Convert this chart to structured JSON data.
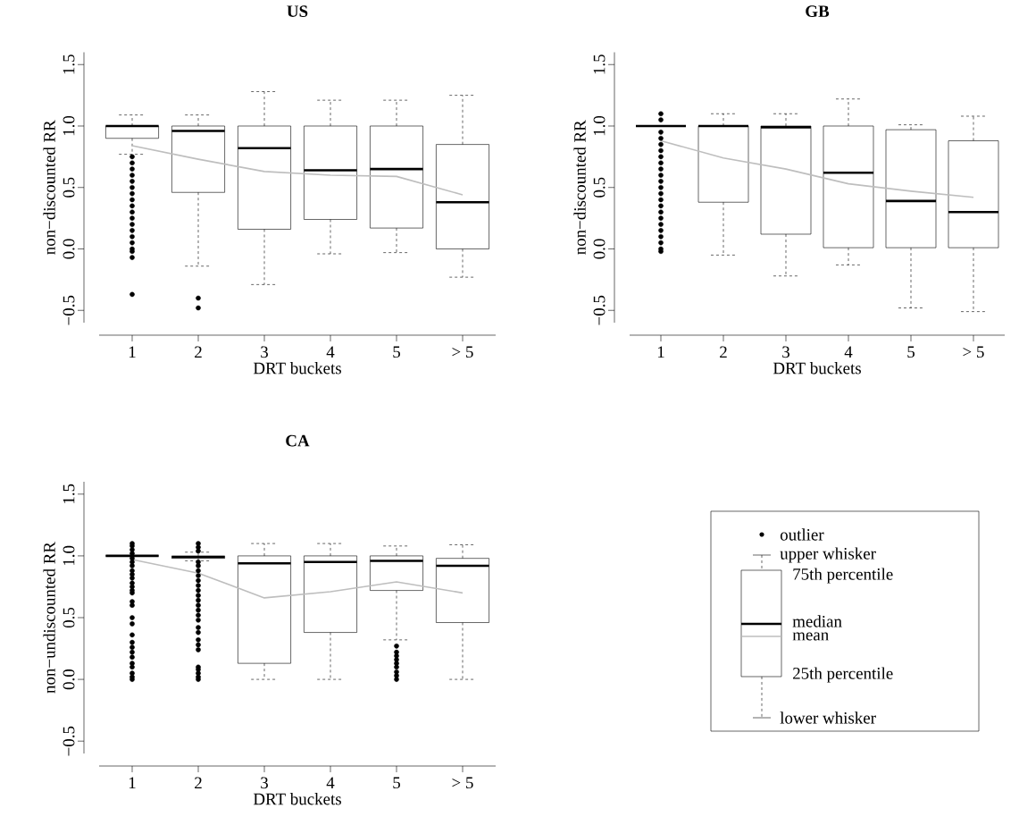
{
  "chart_data": [
    {
      "type": "box",
      "title": "US",
      "xlabel": "DRT buckets",
      "ylabel": "non−discounted RR",
      "categories": [
        "1",
        "2",
        "3",
        "4",
        "5",
        "> 5"
      ],
      "ylim": [
        -0.6,
        1.6
      ],
      "yticks": [
        {
          "value": -0.5,
          "label": "−0.5"
        },
        {
          "value": 0,
          "label": "0.0"
        },
        {
          "value": 0.5,
          "label": "0.5"
        },
        {
          "value": 1,
          "label": "1.0"
        },
        {
          "value": 1.5,
          "label": "1.5"
        }
      ],
      "series": [
        {
          "type": "box",
          "boxes": [
            {
              "low": 0.77,
              "q1": 0.9,
              "median": 1.0,
              "q3": 1.0,
              "high": 1.09,
              "outliers": [
                -0.37,
                -0.07,
                -0.02,
                0.0,
                0.05,
                0.1,
                0.15,
                0.2,
                0.25,
                0.3,
                0.35,
                0.4,
                0.45,
                0.5,
                0.55,
                0.6,
                0.65,
                0.7,
                0.75
              ]
            },
            {
              "low": -0.14,
              "q1": 0.46,
              "median": 0.96,
              "q3": 1.0,
              "high": 1.09,
              "outliers": [
                -0.48,
                -0.4
              ]
            },
            {
              "low": -0.29,
              "q1": 0.16,
              "median": 0.82,
              "q3": 1.0,
              "high": 1.28
            },
            {
              "low": -0.04,
              "q1": 0.24,
              "median": 0.64,
              "q3": 1.0,
              "high": 1.21
            },
            {
              "low": -0.03,
              "q1": 0.17,
              "median": 0.65,
              "q3": 1.0,
              "high": 1.21
            },
            {
              "low": -0.23,
              "q1": 0.0,
              "median": 0.38,
              "q3": 0.85,
              "high": 1.25
            }
          ]
        },
        {
          "type": "line",
          "color": "#bebebe",
          "values": [
            0.84,
            0.73,
            0.63,
            0.6,
            0.59,
            0.44
          ]
        }
      ]
    },
    {
      "type": "box",
      "title": "GB",
      "xlabel": "DRT buckets",
      "ylabel": "non−discounted RR",
      "categories": [
        "1",
        "2",
        "3",
        "4",
        "5",
        "> 5"
      ],
      "ylim": [
        -0.6,
        1.6
      ],
      "yticks": [
        {
          "value": -0.5,
          "label": "−0.5"
        },
        {
          "value": 0,
          "label": "0.0"
        },
        {
          "value": 0.5,
          "label": "0.5"
        },
        {
          "value": 1,
          "label": "1.0"
        },
        {
          "value": 1.5,
          "label": "1.5"
        }
      ],
      "series": [
        {
          "type": "box",
          "boxes": [
            {
              "low": 1.0,
              "q1": 1.0,
              "median": 1.0,
              "q3": 1.0,
              "high": 1.0,
              "outliers": [
                -0.02,
                0.0,
                0.05,
                0.1,
                0.15,
                0.2,
                0.25,
                0.3,
                0.35,
                0.4,
                0.45,
                0.5,
                0.55,
                0.6,
                0.65,
                0.7,
                0.75,
                0.8,
                0.85,
                0.9,
                0.95,
                1.05,
                1.1
              ]
            },
            {
              "low": -0.05,
              "q1": 0.38,
              "median": 1.0,
              "q3": 1.0,
              "high": 1.1
            },
            {
              "low": -0.22,
              "q1": 0.12,
              "median": 0.99,
              "q3": 1.0,
              "high": 1.1
            },
            {
              "low": -0.13,
              "q1": 0.01,
              "median": 0.62,
              "q3": 1.0,
              "high": 1.22
            },
            {
              "low": -0.48,
              "q1": 0.01,
              "median": 0.39,
              "q3": 0.97,
              "high": 1.01
            },
            {
              "low": -0.51,
              "q1": 0.01,
              "median": 0.3,
              "q3": 0.88,
              "high": 1.08
            }
          ]
        },
        {
          "type": "line",
          "color": "#bebebe",
          "values": [
            0.88,
            0.74,
            0.65,
            0.53,
            0.47,
            0.42
          ]
        }
      ]
    },
    {
      "type": "box",
      "title": "CA",
      "xlabel": "DRT buckets",
      "ylabel": "non−undiscounted RR",
      "categories": [
        "1",
        "2",
        "3",
        "4",
        "5",
        "> 5"
      ],
      "ylim": [
        -0.6,
        1.6
      ],
      "yticks": [
        {
          "value": -0.5,
          "label": "−0.5"
        },
        {
          "value": 0,
          "label": "0.0"
        },
        {
          "value": 0.5,
          "label": "0.5"
        },
        {
          "value": 1,
          "label": "1.0"
        },
        {
          "value": 1.5,
          "label": "1.5"
        }
      ],
      "series": [
        {
          "type": "box",
          "boxes": [
            {
              "low": 1.0,
              "q1": 1.0,
              "median": 1.0,
              "q3": 1.0,
              "high": 1.0,
              "outliers": [
                0.0,
                0.02,
                0.05,
                0.1,
                0.13,
                0.18,
                0.22,
                0.26,
                0.3,
                0.36,
                0.45,
                0.5,
                0.6,
                0.63,
                0.7,
                0.72,
                0.75,
                0.78,
                0.82,
                0.85,
                0.88,
                0.92,
                0.95,
                0.98,
                1.02,
                1.05,
                1.08,
                1.1
              ]
            },
            {
              "low": 0.96,
              "q1": 0.98,
              "median": 0.99,
              "q3": 1.0,
              "high": 1.03,
              "outliers": [
                0.0,
                0.02,
                0.05,
                0.08,
                0.1,
                0.24,
                0.28,
                0.32,
                0.38,
                0.42,
                0.48,
                0.52,
                0.56,
                0.6,
                0.64,
                0.68,
                0.72,
                0.76,
                0.8,
                0.84,
                0.88,
                0.92,
                0.95,
                1.04,
                1.07,
                1.1
              ]
            },
            {
              "low": 0.0,
              "q1": 0.13,
              "median": 0.94,
              "q3": 1.0,
              "high": 1.1
            },
            {
              "low": 0.0,
              "q1": 0.38,
              "median": 0.95,
              "q3": 1.0,
              "high": 1.1
            },
            {
              "low": 0.32,
              "q1": 0.72,
              "median": 0.96,
              "q3": 1.0,
              "high": 1.08,
              "outliers": [
                0.0,
                0.03,
                0.06,
                0.1,
                0.13,
                0.16,
                0.19,
                0.22,
                0.27
              ]
            },
            {
              "low": 0.0,
              "q1": 0.46,
              "median": 0.92,
              "q3": 0.98,
              "high": 1.09
            }
          ]
        },
        {
          "type": "line",
          "color": "#bebebe",
          "values": [
            0.97,
            0.86,
            0.66,
            0.71,
            0.79,
            0.7
          ]
        }
      ]
    },
    {
      "type": "other",
      "annotations": [
        "outlier",
        "upper whisker",
        "75th percentile",
        "median",
        "mean",
        "25th percentile",
        "lower whisker"
      ]
    }
  ]
}
